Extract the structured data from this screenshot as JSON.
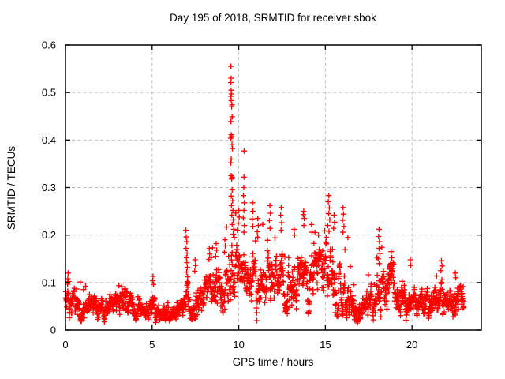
{
  "window": {
    "background": "#ffffff",
    "text_color": "#000000"
  },
  "chart_data": {
    "type": "scatter",
    "title": "Day 195 of 2018, SRMTID for receiver sbok",
    "xlabel": "GPS time / hours",
    "ylabel": "SRMTID / TECUs",
    "xlim": [
      0,
      24
    ],
    "ylim": [
      0,
      0.6
    ],
    "xticks": [
      0,
      5,
      10,
      15,
      20
    ],
    "xtick_labels": [
      "0",
      "5",
      "10",
      "15",
      "20"
    ],
    "yticks": [
      0,
      0.1,
      0.2,
      0.3,
      0.4,
      0.5,
      0.6
    ],
    "ytick_labels": [
      "0",
      "0.1",
      "0.2",
      "0.3",
      "0.4",
      "0.5",
      "0.6"
    ],
    "grid": {
      "on": true,
      "style": "dashed",
      "color": "#b8b8b8"
    },
    "border_color": "#000000",
    "legend": "none",
    "marker": {
      "shape": "plus",
      "color": "#ff0000",
      "size": 7
    },
    "time_coverage_hours": [
      0,
      23
    ],
    "envelope_by_hour": [
      [
        0.0,
        0.055,
        0.03,
        0.12
      ],
      [
        0.5,
        0.05,
        0.027,
        0.1
      ],
      [
        1.0,
        0.05,
        0.026,
        0.095
      ],
      [
        1.5,
        0.048,
        0.025,
        0.09
      ],
      [
        2.0,
        0.045,
        0.024,
        0.085
      ],
      [
        2.5,
        0.045,
        0.023,
        0.085
      ],
      [
        3.0,
        0.05,
        0.025,
        0.095
      ],
      [
        3.5,
        0.05,
        0.025,
        0.095
      ],
      [
        4.0,
        0.042,
        0.022,
        0.08
      ],
      [
        4.5,
        0.04,
        0.02,
        0.075
      ],
      [
        5.0,
        0.045,
        0.025,
        0.1
      ],
      [
        5.5,
        0.035,
        0.018,
        0.065
      ],
      [
        6.0,
        0.03,
        0.016,
        0.06
      ],
      [
        6.5,
        0.04,
        0.022,
        0.085
      ],
      [
        7.0,
        0.06,
        0.032,
        0.14
      ],
      [
        7.5,
        0.055,
        0.03,
        0.13
      ],
      [
        8.0,
        0.065,
        0.035,
        0.16
      ],
      [
        8.5,
        0.075,
        0.04,
        0.175
      ],
      [
        9.0,
        0.085,
        0.048,
        0.185
      ],
      [
        9.5,
        0.11,
        0.062,
        0.25
      ],
      [
        10.0,
        0.115,
        0.065,
        0.26
      ],
      [
        10.5,
        0.1,
        0.058,
        0.235
      ],
      [
        11.0,
        0.1,
        0.055,
        0.22
      ],
      [
        11.5,
        0.105,
        0.058,
        0.235
      ],
      [
        12.0,
        0.115,
        0.06,
        0.245
      ],
      [
        12.5,
        0.11,
        0.055,
        0.23
      ],
      [
        13.0,
        0.1,
        0.052,
        0.21
      ],
      [
        13.5,
        0.105,
        0.056,
        0.235
      ],
      [
        14.0,
        0.1,
        0.052,
        0.215
      ],
      [
        14.5,
        0.1,
        0.052,
        0.205
      ],
      [
        15.0,
        0.12,
        0.068,
        0.265
      ],
      [
        15.5,
        0.115,
        0.065,
        0.245
      ],
      [
        16.0,
        0.09,
        0.055,
        0.235
      ],
      [
        16.5,
        0.055,
        0.032,
        0.12
      ],
      [
        17.0,
        0.045,
        0.028,
        0.1
      ],
      [
        17.5,
        0.05,
        0.03,
        0.12
      ],
      [
        18.0,
        0.08,
        0.05,
        0.185
      ],
      [
        18.5,
        0.085,
        0.048,
        0.165
      ],
      [
        19.0,
        0.07,
        0.04,
        0.14
      ],
      [
        19.5,
        0.065,
        0.038,
        0.14
      ],
      [
        20.0,
        0.05,
        0.028,
        0.1
      ],
      [
        20.5,
        0.048,
        0.028,
        0.1
      ],
      [
        21.0,
        0.052,
        0.032,
        0.11
      ],
      [
        21.5,
        0.065,
        0.04,
        0.135
      ],
      [
        22.0,
        0.06,
        0.035,
        0.12
      ],
      [
        22.5,
        0.058,
        0.032,
        0.11
      ],
      [
        23.0,
        0.05,
        0.028,
        0.09
      ]
    ],
    "outlier_points": [
      [
        9.55,
        0.555
      ],
      [
        9.56,
        0.53
      ],
      [
        9.54,
        0.521
      ],
      [
        9.56,
        0.505
      ],
      [
        9.58,
        0.497
      ],
      [
        9.55,
        0.492
      ],
      [
        9.57,
        0.483
      ],
      [
        9.61,
        0.474
      ],
      [
        9.59,
        0.47
      ],
      [
        9.62,
        0.449
      ],
      [
        9.55,
        0.439
      ],
      [
        9.57,
        0.411
      ],
      [
        9.6,
        0.407
      ],
      [
        9.53,
        0.404
      ],
      [
        9.61,
        0.391
      ],
      [
        9.63,
        0.382
      ],
      [
        9.57,
        0.36
      ],
      [
        9.54,
        0.352
      ],
      [
        9.56,
        0.325
      ],
      [
        9.62,
        0.322
      ],
      [
        9.59,
        0.318
      ],
      [
        9.62,
        0.295
      ],
      [
        9.57,
        0.282
      ],
      [
        9.64,
        0.272
      ],
      [
        9.58,
        0.262
      ],
      [
        9.66,
        0.252
      ],
      [
        9.6,
        0.242
      ],
      [
        9.68,
        0.232
      ],
      [
        9.62,
        0.222
      ],
      [
        9.71,
        0.212
      ],
      [
        9.68,
        0.202
      ],
      [
        9.74,
        0.195
      ],
      [
        10.31,
        0.377
      ],
      [
        10.3,
        0.322
      ],
      [
        10.29,
        0.3
      ],
      [
        10.27,
        0.283
      ],
      [
        10.32,
        0.268
      ],
      [
        10.3,
        0.252
      ],
      [
        10.26,
        0.236
      ],
      [
        10.33,
        0.22
      ],
      [
        10.3,
        0.206
      ],
      [
        6.95,
        0.21
      ],
      [
        6.97,
        0.196
      ],
      [
        7.0,
        0.186
      ],
      [
        6.96,
        0.172
      ],
      [
        7.02,
        0.162
      ],
      [
        6.98,
        0.152
      ],
      [
        7.01,
        0.142
      ],
      [
        7.03,
        0.132
      ],
      [
        6.99,
        0.122
      ],
      [
        7.05,
        0.112
      ],
      [
        7.48,
        0.148
      ],
      [
        7.5,
        0.136
      ],
      [
        7.46,
        0.124
      ],
      [
        8.3,
        0.172
      ],
      [
        8.32,
        0.16
      ],
      [
        8.28,
        0.149
      ],
      [
        8.7,
        0.182
      ],
      [
        8.72,
        0.168
      ],
      [
        8.67,
        0.155
      ],
      [
        9.2,
        0.19
      ],
      [
        9.22,
        0.177
      ],
      [
        9.17,
        0.164
      ],
      [
        10.0,
        0.252
      ],
      [
        10.03,
        0.238
      ],
      [
        9.97,
        0.225
      ],
      [
        9.92,
        0.21
      ],
      [
        10.8,
        0.268
      ],
      [
        10.82,
        0.25
      ],
      [
        10.78,
        0.234
      ],
      [
        10.81,
        0.218
      ],
      [
        11.1,
        0.235
      ],
      [
        11.13,
        0.22
      ],
      [
        11.07,
        0.207
      ],
      [
        11.8,
        0.262
      ],
      [
        11.83,
        0.246
      ],
      [
        11.77,
        0.23
      ],
      [
        11.81,
        0.214
      ],
      [
        12.45,
        0.258
      ],
      [
        12.42,
        0.242
      ],
      [
        12.48,
        0.226
      ],
      [
        12.44,
        0.21
      ],
      [
        13.2,
        0.212
      ],
      [
        13.22,
        0.2
      ],
      [
        13.75,
        0.25
      ],
      [
        13.72,
        0.243
      ],
      [
        13.78,
        0.235
      ],
      [
        13.76,
        0.22
      ],
      [
        14.2,
        0.222
      ],
      [
        14.23,
        0.206
      ],
      [
        14.6,
        0.2
      ],
      [
        15.2,
        0.283
      ],
      [
        15.17,
        0.27
      ],
      [
        15.23,
        0.257
      ],
      [
        15.19,
        0.245
      ],
      [
        15.25,
        0.232
      ],
      [
        15.14,
        0.22
      ],
      [
        15.21,
        0.208
      ],
      [
        15.5,
        0.242
      ],
      [
        15.53,
        0.227
      ],
      [
        15.47,
        0.214
      ],
      [
        16.02,
        0.258
      ],
      [
        16.05,
        0.244
      ],
      [
        15.99,
        0.231
      ],
      [
        16.07,
        0.218
      ],
      [
        16.01,
        0.206
      ],
      [
        16.3,
        0.195
      ],
      [
        18.1,
        0.212
      ],
      [
        18.07,
        0.197
      ],
      [
        18.12,
        0.186
      ],
      [
        18.1,
        0.172
      ],
      [
        18.15,
        0.161
      ],
      [
        18.05,
        0.15
      ],
      [
        18.11,
        0.14
      ],
      [
        18.8,
        0.165
      ],
      [
        18.83,
        0.152
      ],
      [
        19.9,
        0.148
      ],
      [
        19.92,
        0.136
      ],
      [
        21.7,
        0.146
      ],
      [
        21.73,
        0.135
      ],
      [
        21.67,
        0.125
      ],
      [
        22.5,
        0.12
      ],
      [
        22.53,
        0.11
      ],
      [
        5.05,
        0.113
      ],
      [
        5.03,
        0.104
      ],
      [
        5.08,
        0.096
      ],
      [
        0.15,
        0.12
      ],
      [
        0.13,
        0.108
      ],
      [
        0.19,
        0.102
      ],
      [
        0.85,
        0.101
      ]
    ],
    "generated_points": {
      "count": 1750,
      "seed": 195,
      "x_jitter": 0.012
    }
  }
}
